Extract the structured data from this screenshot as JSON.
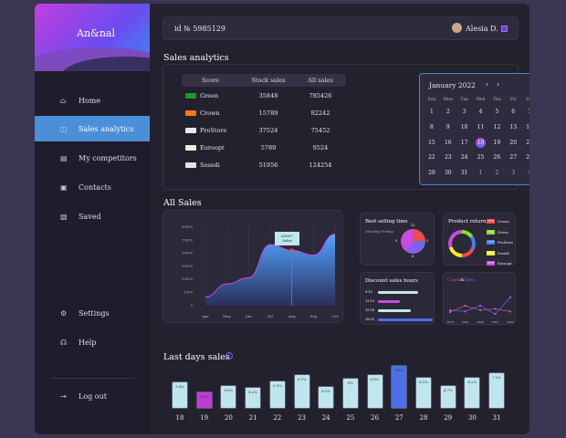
{
  "brand": {
    "logo": "An&nal"
  },
  "sidebar": {
    "items": [
      {
        "label": "Home",
        "icon": "home-icon",
        "glyph": "⌂"
      },
      {
        "label": "Sales analytics",
        "icon": "chart-icon",
        "glyph": "◫"
      },
      {
        "label": "My competitors",
        "icon": "store-icon",
        "glyph": "▤"
      },
      {
        "label": "Contacts",
        "icon": "contact-icon",
        "glyph": "▣"
      },
      {
        "label": "Saved",
        "icon": "saved-icon",
        "glyph": "▧"
      },
      {
        "label": "Settings",
        "icon": "gear-icon",
        "glyph": "⚙"
      },
      {
        "label": "Help",
        "icon": "headset-icon",
        "glyph": "☊"
      },
      {
        "label": "Log out",
        "icon": "logout-icon",
        "glyph": "⇥"
      }
    ],
    "active": "Sales analytics"
  },
  "header": {
    "id": "id № 5985129",
    "user": "Alesia D."
  },
  "sales_analytics": {
    "title": "Sales analytics",
    "columns": [
      "Score",
      "Stock sales",
      "All sales"
    ],
    "rows": [
      {
        "name": "Green",
        "stock": "35848",
        "all": "785426",
        "color": "#1a9a2a"
      },
      {
        "name": "Crown",
        "stock": "15789",
        "all": "82242",
        "color": "#f07a1a"
      },
      {
        "name": "ProStore",
        "stock": "37524",
        "all": "75452",
        "color": "#e8e8f0"
      },
      {
        "name": "Euroopt",
        "stock": "5789",
        "all": "9524",
        "color": "#e6f0dc"
      },
      {
        "name": "Sosedi",
        "stock": "51956",
        "all": "124254",
        "color": "#dfe4f0"
      }
    ]
  },
  "calendar": {
    "month": "January 2022",
    "prev": "‹",
    "next": "›",
    "weekdays": [
      "Sun",
      "Mon",
      "Tue",
      "Wed",
      "Thu",
      "Fri",
      "Sat"
    ],
    "days": [
      "1",
      "2",
      "3",
      "4",
      "5",
      "6",
      "7",
      "8",
      "9",
      "10",
      "11",
      "12",
      "13",
      "14",
      "15",
      "16",
      "17",
      "18",
      "19",
      "20",
      "21",
      "22",
      "23",
      "24",
      "25",
      "26",
      "27",
      "28",
      "29",
      "30",
      "31",
      "1",
      "2",
      "3",
      "4"
    ],
    "selected": "18"
  },
  "all_sales": {
    "title": "All Sales",
    "tooltip_value": "63507",
    "tooltip_label": "Sales",
    "chart_data": {
      "type": "area",
      "categories": [
        "Apr",
        "May",
        "Jun",
        "Jul",
        "Aug",
        "Sep",
        "Oct"
      ],
      "yticks": [
        "90000",
        "75000",
        "50000",
        "35000",
        "15000",
        "1000",
        "0"
      ],
      "values": [
        10000,
        25000,
        32000,
        70000,
        63507,
        58000,
        82000
      ],
      "ylim": [
        0,
        90000
      ]
    }
  },
  "best_selling": {
    "title": "Best selling time",
    "subtitle": "Monday-Friday",
    "ticks": [
      "12",
      "3",
      "6",
      "9"
    ]
  },
  "product_return": {
    "title": "Product return",
    "items": [
      {
        "pct": "20%",
        "name": "Crown",
        "color": "#ef4b4b"
      },
      {
        "pct": "5%",
        "name": "Green",
        "color": "#8ee02a"
      },
      {
        "pct": "15%",
        "name": "ProStore",
        "color": "#4a7be8"
      },
      {
        "pct": "20%",
        "name": "Sosedi",
        "color": "#f4f020"
      },
      {
        "pct": "40%",
        "name": "Euroopt",
        "color": "#c84ce0"
      }
    ]
  },
  "discount_hours": {
    "title": "Discount sales hours",
    "rows": [
      {
        "label": "9-12",
        "value": 0.55,
        "color": "#bfe8ee"
      },
      {
        "label": "12-15",
        "value": 0.3,
        "color": "#c84ce0"
      },
      {
        "label": "15-18",
        "value": 0.45,
        "color": "#bfe8ee"
      },
      {
        "label": "18-21",
        "value": 0.75,
        "color": "#4a6fe8"
      }
    ]
  },
  "capex_opex": {
    "capex": "Capex",
    "amp": "&",
    "opex": "Opex",
    "chart_data": {
      "type": "line",
      "categories": [
        "2018",
        "2019",
        "2020",
        "2021",
        "2022"
      ],
      "series": [
        {
          "name": "Capex",
          "color": "#e04a5a",
          "values": [
            35,
            45,
            38,
            40,
            36
          ]
        },
        {
          "name": "Opex",
          "color": "#4a6fe8",
          "values": [
            38,
            36,
            45,
            32,
            58
          ]
        }
      ]
    }
  },
  "last_days": {
    "title": "Last days sales",
    "chart_data": {
      "type": "bar",
      "categories": [
        "18",
        "19",
        "20",
        "21",
        "22",
        "23",
        "24",
        "25",
        "26",
        "27",
        "28",
        "29",
        "30",
        "31"
      ],
      "values": [
        5.4,
        3.4,
        4.6,
        4.2,
        5.5,
        6.7,
        4.5,
        6,
        6.8,
        8.6,
        6.3,
        4.7,
        6.2,
        7.2
      ],
      "labels": [
        "5.4%",
        "3.4%",
        "4.6%",
        "4.2%",
        "5.5%",
        "6.7%",
        "4.5%",
        "6%",
        "6.8%",
        "8.6%",
        "6.3%",
        "4.7%",
        "6.2%",
        "7.2%"
      ],
      "highlight": {
        "19": "#c43ad6",
        "27": "#4a6fe8"
      },
      "default_color": "#bfe6ec"
    }
  }
}
